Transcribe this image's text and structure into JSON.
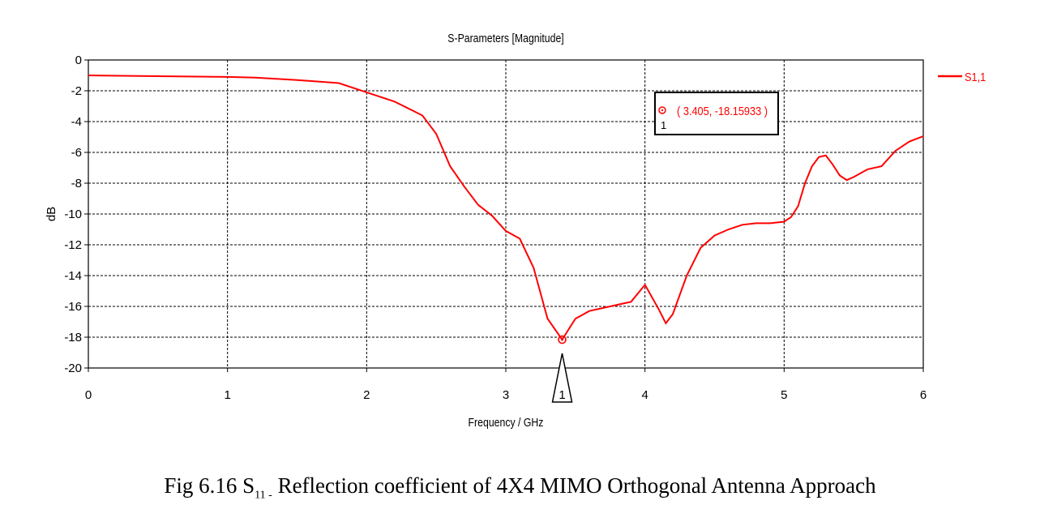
{
  "chart_data": {
    "type": "line",
    "title": "S-Parameters [Magnitude]",
    "xlabel": "Frequency / GHz",
    "ylabel": "dB",
    "xlim": [
      0,
      6
    ],
    "ylim": [
      -20,
      0
    ],
    "x_ticks": [
      "0",
      "1",
      "2",
      "3",
      "4",
      "5",
      "6"
    ],
    "y_ticks": [
      "0",
      "-2",
      "-4",
      "-6",
      "-8",
      "-10",
      "-12",
      "-14",
      "-16",
      "-18",
      "-20"
    ],
    "grid": true,
    "legend_position": "right",
    "series": [
      {
        "name": "S1,1",
        "color": "#ff0000",
        "x": [
          0,
          0.5,
          1.0,
          1.2,
          1.5,
          1.8,
          2.0,
          2.2,
          2.4,
          2.5,
          2.6,
          2.7,
          2.8,
          2.9,
          3.0,
          3.1,
          3.2,
          3.3,
          3.405,
          3.5,
          3.6,
          3.7,
          3.8,
          3.9,
          4.0,
          4.1,
          4.15,
          4.2,
          4.3,
          4.4,
          4.5,
          4.6,
          4.7,
          4.8,
          4.9,
          5.0,
          5.05,
          5.1,
          5.15,
          5.2,
          5.25,
          5.3,
          5.35,
          5.4,
          5.45,
          5.5,
          5.6,
          5.7,
          5.8,
          5.9,
          6.0
        ],
        "y": [
          -1.0,
          -1.05,
          -1.1,
          -1.15,
          -1.3,
          -1.5,
          -2.1,
          -2.7,
          -3.6,
          -4.8,
          -6.9,
          -8.2,
          -9.4,
          -10.1,
          -11.1,
          -11.6,
          -13.5,
          -16.8,
          -18.16,
          -16.8,
          -16.3,
          -16.1,
          -15.9,
          -15.7,
          -14.6,
          -16.2,
          -17.1,
          -16.5,
          -14.0,
          -12.2,
          -11.4,
          -11.0,
          -10.7,
          -10.6,
          -10.6,
          -10.5,
          -10.2,
          -9.5,
          -8.0,
          -6.9,
          -6.3,
          -6.2,
          -6.8,
          -7.5,
          -7.8,
          -7.6,
          -7.1,
          -6.9,
          -5.9,
          -5.3,
          -4.95
        ]
      }
    ],
    "marker": {
      "id": "1",
      "x": 3.405,
      "y": -18.15933,
      "label": "( 3.405, -18.15933 )",
      "index_label": "1"
    }
  },
  "caption": {
    "prefix": "Fig 6.16  S",
    "subscript": "11 -",
    "suffix": " Reflection coefficient of  4X4 MIMO Orthogonal Antenna Approach"
  }
}
